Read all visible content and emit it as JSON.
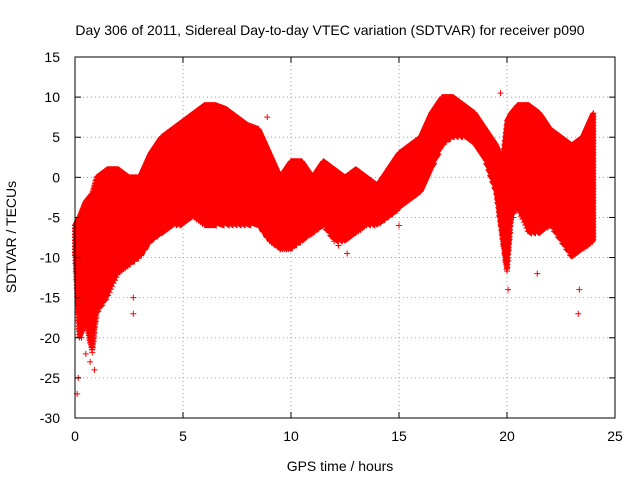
{
  "chart_data": {
    "type": "scatter",
    "title": "Day 306 of 2011, Sidereal Day-to-day VTEC variation (SDTVAR) for receiver p090",
    "xlabel": "GPS time / hours",
    "ylabel": "SDTVAR / TECUs",
    "xlim": [
      0,
      25
    ],
    "ylim": [
      -30,
      15
    ],
    "xticks": [
      0,
      5,
      10,
      15,
      20,
      25
    ],
    "yticks": [
      -30,
      -25,
      -20,
      -15,
      -10,
      -5,
      0,
      5,
      10,
      15
    ],
    "grid": true,
    "marker": "+",
    "color": "#ff0000",
    "series": [
      {
        "envelope_x": [
          0.0,
          0.2,
          0.5,
          0.8,
          1.0,
          1.5,
          2.0,
          2.5,
          3.0,
          3.5,
          4.0,
          4.5,
          5.0,
          5.5,
          6.0,
          6.5,
          7.0,
          7.5,
          8.0,
          8.5,
          9.0,
          9.5,
          10.0,
          10.5,
          11.0,
          11.5,
          12.0,
          12.5,
          13.0,
          13.5,
          14.0,
          14.5,
          15.0,
          15.5,
          16.0,
          16.5,
          17.0,
          17.5,
          18.0,
          18.5,
          19.0,
          19.5,
          19.8,
          20.0,
          20.2,
          20.5,
          21.0,
          21.5,
          22.0,
          22.5,
          23.0,
          23.5,
          24.0
        ],
        "envelope_upper": [
          -6,
          -5,
          -3,
          -2,
          0,
          1,
          1,
          0,
          0,
          3,
          5,
          6,
          7,
          8,
          9,
          9,
          8.5,
          7.5,
          6.5,
          6,
          3,
          0,
          2,
          2,
          0,
          2,
          1,
          0,
          1,
          0,
          -1,
          1,
          3,
          4,
          5,
          8,
          10,
          10,
          9,
          8,
          6,
          4,
          2,
          7,
          8,
          9,
          9,
          8,
          6,
          5,
          4,
          5,
          8
        ],
        "envelope_lower": [
          -10,
          -20,
          -18,
          -22,
          -17,
          -15,
          -12,
          -11,
          -10,
          -8,
          -7,
          -6,
          -6,
          -5,
          -6,
          -6,
          -6,
          -6,
          -6,
          -6,
          -8,
          -9,
          -9,
          -8,
          -7,
          -6,
          -8,
          -8,
          -7,
          -6,
          -6,
          -5,
          -4,
          -3,
          -2,
          1,
          4,
          5,
          5,
          4,
          2,
          -2,
          -8,
          -12,
          -5,
          -4,
          -7,
          -7,
          -6,
          -8,
          -10,
          -9,
          -8
        ],
        "spikes": [
          [
            0.1,
            -27
          ],
          [
            0.15,
            -25
          ],
          [
            0.3,
            -20
          ],
          [
            0.5,
            -22
          ],
          [
            0.7,
            -23
          ],
          [
            0.9,
            -24
          ],
          [
            2.7,
            -17
          ],
          [
            2.7,
            -15
          ],
          [
            8.9,
            7.5
          ],
          [
            12.2,
            -8.5
          ],
          [
            12.6,
            -9.5
          ],
          [
            15.0,
            -6
          ],
          [
            19.7,
            10.5
          ],
          [
            20.05,
            -14
          ],
          [
            20.3,
            -5
          ],
          [
            21.4,
            -12
          ],
          [
            23.3,
            -17
          ],
          [
            23.35,
            -14
          ],
          [
            23.9,
            7
          ]
        ]
      }
    ]
  }
}
